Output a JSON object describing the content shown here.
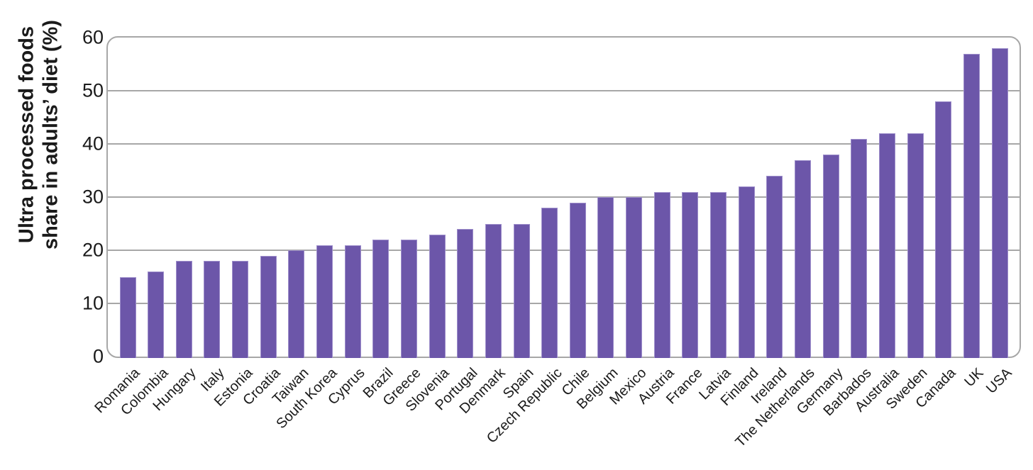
{
  "chart_data": {
    "type": "bar",
    "title": "",
    "ylabel": "Ultra processed foods share in adults’ diet (%)",
    "ylabel_line1": "Ultra processed foods",
    "ylabel_line2": "share in adults’ diet (%)",
    "xlabel": "",
    "categories": [
      "Romania",
      "Colombia",
      "Hungary",
      "Italy",
      "Estonia",
      "Croatia",
      "Taiwan",
      "South Korea",
      "Cyprus",
      "Brazil",
      "Greece",
      "Slovenia",
      "Portugal",
      "Denmark",
      "Spain",
      "Czech Republic",
      "Chile",
      "Belgium",
      "Mexico",
      "Austria",
      "France",
      "Latvia",
      "Finland",
      "Ireland",
      "The Netherlands",
      "Germany",
      "Barbados",
      "Australia",
      "Sweden",
      "Canada",
      "UK",
      "USA"
    ],
    "values": [
      15,
      16,
      18,
      18,
      18,
      19,
      20,
      21,
      21,
      22,
      22,
      23,
      24,
      25,
      25,
      28,
      29,
      30,
      30,
      31,
      31,
      31,
      32,
      34,
      37,
      38,
      41,
      42,
      42,
      48,
      57,
      58
    ],
    "yticks": [
      0,
      10,
      20,
      30,
      40,
      50,
      60
    ],
    "ylim": [
      0,
      60
    ],
    "grid": true,
    "legend_position": "none",
    "bar_color": "#6C56A9",
    "bar_edge_color": "#9E8FCB",
    "grid_color": "#A7A7A7",
    "text_color": "#1a1a1a"
  }
}
